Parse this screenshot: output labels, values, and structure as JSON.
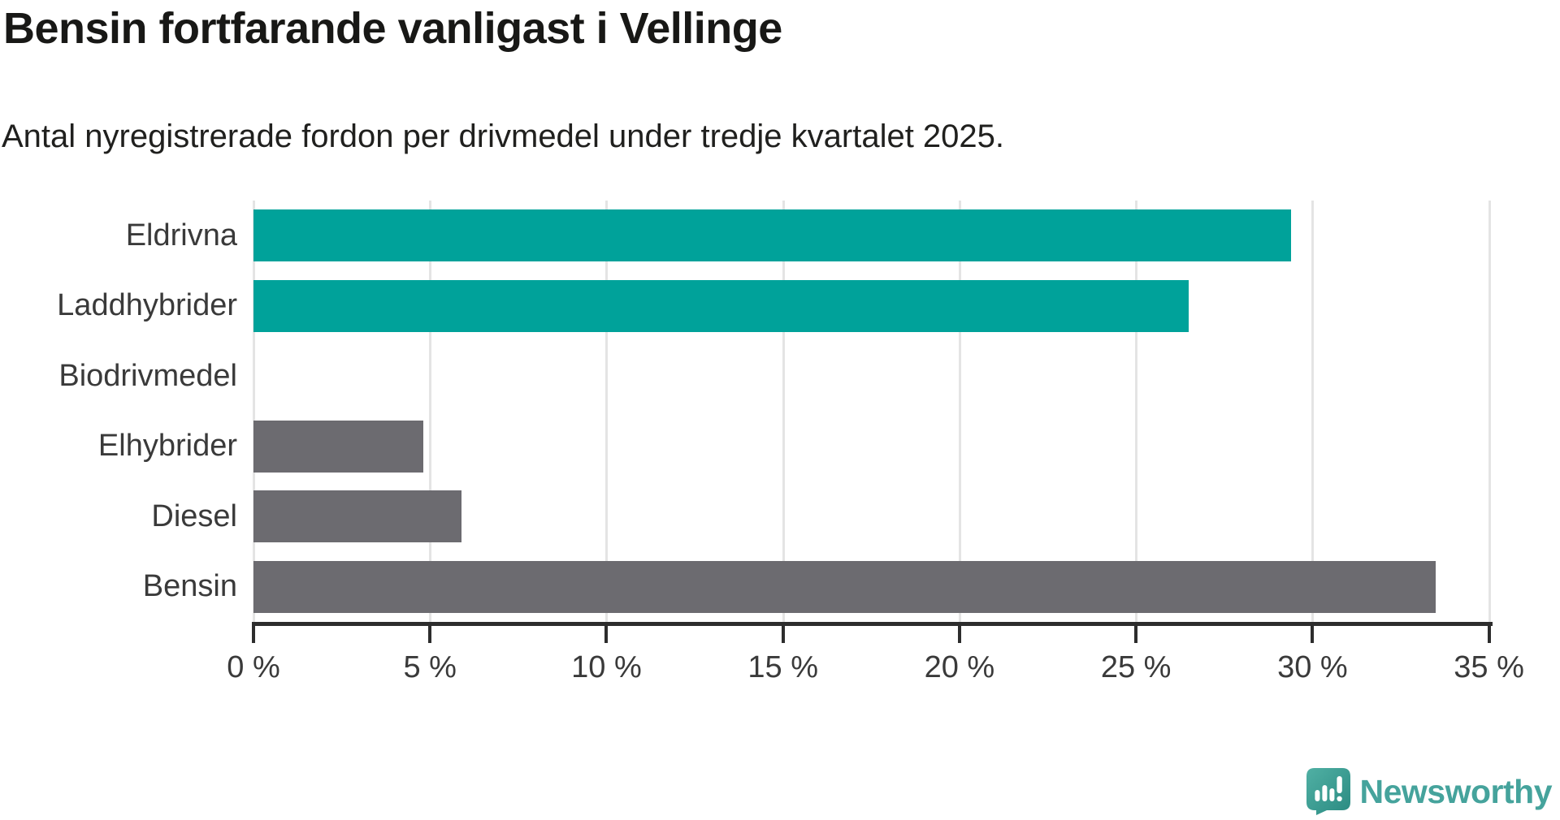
{
  "title": "Bensin fortfarande vanligast i Vellinge",
  "subtitle": "Antal nyregistrerade fordon per drivmedel under tredje kvartalet 2025.",
  "chart_data": {
    "type": "bar",
    "orientation": "horizontal",
    "categories": [
      "Eldrivna",
      "Laddhybrider",
      "Biodrivmedel",
      "Elhybrider",
      "Diesel",
      "Bensin"
    ],
    "values": [
      29.4,
      26.5,
      0,
      4.8,
      5.9,
      33.5
    ],
    "unit": "%",
    "xlim": [
      0,
      35.4
    ],
    "x_ticks": [
      0,
      5,
      10,
      15,
      20,
      25,
      30,
      35
    ],
    "x_tick_labels": [
      "0 %",
      "5 %",
      "10 %",
      "15 %",
      "20 %",
      "25 %",
      "30 %",
      "35 %"
    ],
    "grid": "vertical",
    "legend": "none",
    "bar_colors": [
      "#00a29a",
      "#00a29a",
      "#6c6b70",
      "#6c6b70",
      "#6c6b70",
      "#6c6b70"
    ],
    "highlight_color": "#00a29a",
    "default_color": "#6c6b70"
  },
  "colors": {
    "background": "#ffffff",
    "axis": "#2d2d2d",
    "gridline": "#e4e4e4",
    "title_text": "#181816",
    "label_text": "#3a3a3a",
    "brand_teal": "#45a39c"
  },
  "branding": {
    "logo_text": "Newsworthy",
    "logo_icon": "newsworthy-speech-bubble-chart-icon"
  }
}
